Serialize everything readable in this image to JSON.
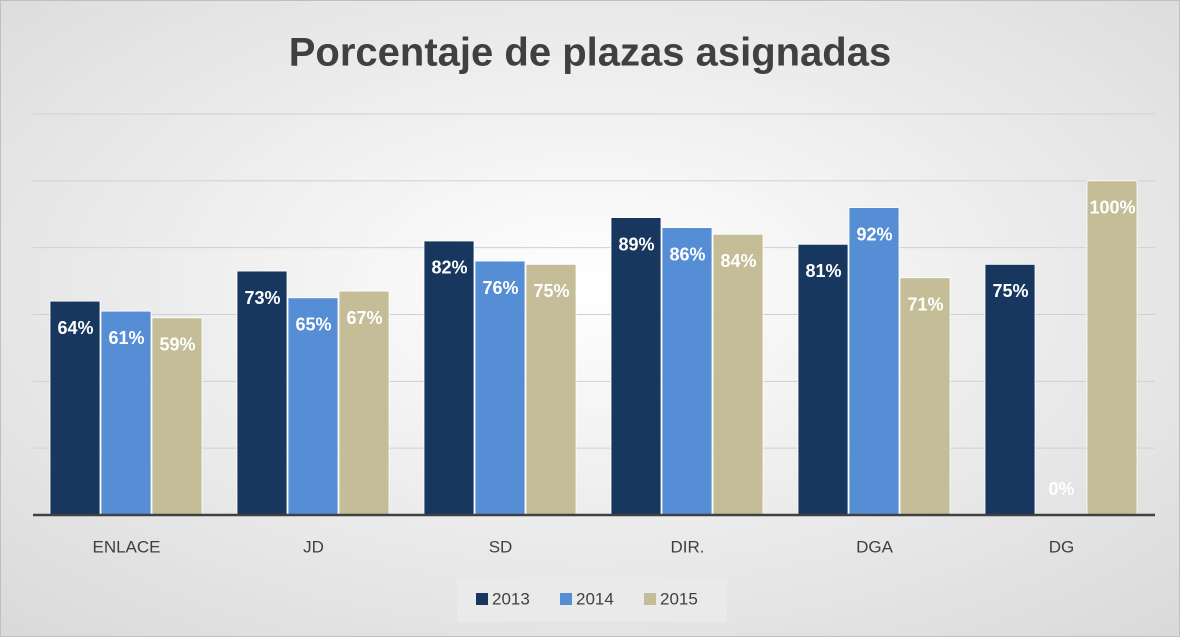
{
  "chart_data": {
    "type": "bar",
    "title": "Porcentaje de plazas asignadas",
    "categories": [
      "ENLACE",
      "JD",
      "SD",
      "DIR.",
      "DGA",
      "DG"
    ],
    "series": [
      {
        "name": "2013",
        "color": "#17375e",
        "values": [
          64,
          73,
          82,
          89,
          81,
          75
        ],
        "value_labels": [
          "64%",
          "73%",
          "82%",
          "89%",
          "81%",
          "75%"
        ]
      },
      {
        "name": "2014",
        "color": "#558ed5",
        "values": [
          61,
          65,
          76,
          86,
          92,
          0
        ],
        "value_labels": [
          "61%",
          "65%",
          "76%",
          "86%",
          "92%",
          "0%"
        ]
      },
      {
        "name": "2015",
        "color": "#c4bd97",
        "values": [
          59,
          67,
          75,
          84,
          71,
          100
        ],
        "value_labels": [
          "59%",
          "67%",
          "75%",
          "84%",
          "71%",
          "100%"
        ]
      }
    ],
    "ylim": [
      0,
      120
    ],
    "yticks": [
      0,
      20,
      40,
      60,
      80,
      100,
      120
    ],
    "grid": true,
    "legend": "bottom"
  }
}
